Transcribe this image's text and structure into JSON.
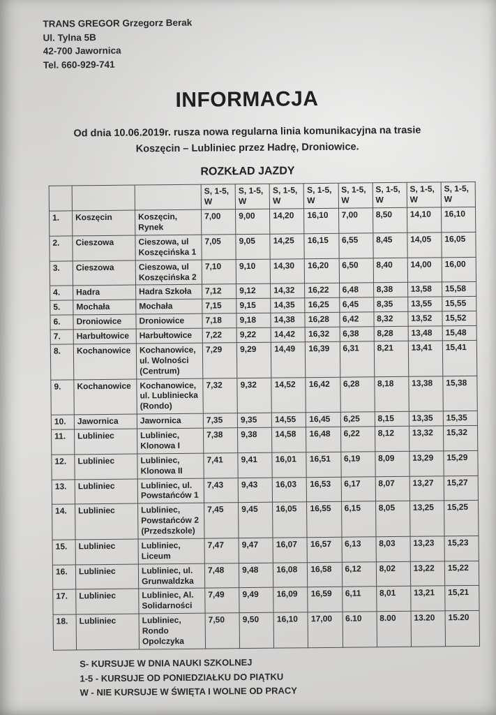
{
  "letterhead": {
    "company": "TRANS GREGOR Grzegorz Berak",
    "street": "Ul. Tylna 5B",
    "city": "42-700 Jawornica",
    "phone": "Tel. 660-929-741"
  },
  "title": "INFORMACJA",
  "intro": {
    "line1": "Od dnia 10.06.2019r. rusza nowa regularna linia komunikacyjna na trasie",
    "line2": "Koszęcin – Lubliniec przez Hadrę, Droniowice."
  },
  "table_title": "ROZKŁAD JAZDY",
  "timetable": {
    "time_headers": [
      "S, 1-5, W",
      "S, 1-5, W",
      "S, 1-5, W",
      "S, 1-5, W",
      "S, 1-5, W",
      "S, 1-5, W",
      "S, 1-5, W",
      "S, 1-5, W"
    ],
    "rows": [
      {
        "no": "1.",
        "village": "Koszęcin",
        "stop": "Koszęcin, Rynek",
        "times": [
          "7,00",
          "9,00",
          "14,20",
          "16,10",
          "7,00",
          "8,50",
          "14,10",
          "16,10"
        ]
      },
      {
        "no": "2.",
        "village": "Cieszowa",
        "stop": "Cieszowa, ul Koszęcińska 1",
        "times": [
          "7,05",
          "9,05",
          "14,25",
          "16,15",
          "6,55",
          "8,45",
          "14,05",
          "16,05"
        ]
      },
      {
        "no": "3.",
        "village": "Cieszowa",
        "stop": "Cieszowa, ul Koszęcińska 2",
        "times": [
          "7,10",
          "9,10",
          "14,30",
          "16,20",
          "6,50",
          "8,40",
          "14,00",
          "16,00"
        ]
      },
      {
        "no": "4.",
        "village": "Hadra",
        "stop": "Hadra Szkoła",
        "times": [
          "7,12",
          "9,12",
          "14,32",
          "16,22",
          "6,48",
          "8,38",
          "13,58",
          "15,58"
        ]
      },
      {
        "no": "5.",
        "village": "Mochała",
        "stop": "Mochała",
        "times": [
          "7,15",
          "9,15",
          "14,35",
          "16,25",
          "6,45",
          "8,35",
          "13,55",
          "15,55"
        ]
      },
      {
        "no": "6.",
        "village": "Droniowice",
        "stop": "Droniowice",
        "times": [
          "7,18",
          "9,18",
          "14,38",
          "16,28",
          "6,42",
          "8,32",
          "13,52",
          "15,52"
        ]
      },
      {
        "no": "7.",
        "village": "Harbułtowice",
        "stop": "Harbułtowice",
        "times": [
          "7,22",
          "9,22",
          "14,42",
          "16,32",
          "6,38",
          "8,28",
          "13,48",
          "15,48"
        ]
      },
      {
        "no": "8.",
        "village": "Kochanowice",
        "stop": "Kochanowice, ul. Wolności (Centrum)",
        "times": [
          "7,29",
          "9,29",
          "14,49",
          "16,39",
          "6,31",
          "8,21",
          "13,41",
          "15,41"
        ]
      },
      {
        "no": "9.",
        "village": "Kochanowice",
        "stop": "Kochanowice, ul. Lubliniecka (Rondo)",
        "times": [
          "7,32",
          "9,32",
          "14,52",
          "16,42",
          "6,28",
          "8,18",
          "13,38",
          "15,38"
        ]
      },
      {
        "no": "10.",
        "village": "Jawornica",
        "stop": "Jawornica",
        "times": [
          "7,35",
          "9,35",
          "14,55",
          "16,45",
          "6,25",
          "8,15",
          "13,35",
          "15,35"
        ]
      },
      {
        "no": "11.",
        "village": "Lubliniec",
        "stop": "Lubliniec, Klonowa I",
        "times": [
          "7,38",
          "9,38",
          "14,58",
          "16,48",
          "6,22",
          "8,12",
          "13,32",
          "15,32"
        ]
      },
      {
        "no": "12.",
        "village": "Lubliniec",
        "stop": "Lubliniec, Klonowa II",
        "times": [
          "7,41",
          "9,41",
          "16,01",
          "16,51",
          "6,19",
          "8,09",
          "13,29",
          "15,29"
        ]
      },
      {
        "no": "13.",
        "village": "Lubliniec",
        "stop": "Lubliniec, ul. Powstańców 1",
        "times": [
          "7,43",
          "9,43",
          "16,03",
          "16,53",
          "6,17",
          "8,07",
          "13,27",
          "15,27"
        ]
      },
      {
        "no": "14.",
        "village": "Lubliniec",
        "stop": "Lubliniec, Powstańców 2 (Przedszkole)",
        "times": [
          "7,45",
          "9,45",
          "16,05",
          "16,55",
          "6,15",
          "8,05",
          "13,25",
          "15,25"
        ]
      },
      {
        "no": "15.",
        "village": "Lubliniec",
        "stop": "Lubliniec, Liceum",
        "times": [
          "7,47",
          "9,47",
          "16,07",
          "16,57",
          "6,13",
          "8,03",
          "13,23",
          "15,23"
        ]
      },
      {
        "no": "16.",
        "village": "Lubliniec",
        "stop": "Lubliniec, ul. Grunwaldzka",
        "times": [
          "7,48",
          "9,48",
          "16,08",
          "16,58",
          "6,12",
          "8,02",
          "13,22",
          "15,22"
        ]
      },
      {
        "no": "17.",
        "village": "Lubliniec",
        "stop": "Lubliniec, Al. Solidarności",
        "times": [
          "7,49",
          "9,49",
          "16,09",
          "16,59",
          "6,11",
          "8,01",
          "13,21",
          "15,21"
        ]
      },
      {
        "no": "18.",
        "village": "Lubliniec",
        "stop": "Lubliniec, Rondo Opolczyka",
        "times": [
          "7,50",
          "9,50",
          "16,10",
          "17,00",
          "6.10",
          "8.00",
          "13.20",
          "15.20"
        ]
      }
    ]
  },
  "legend": [
    "S- KURSUJE W DNIA NAUKI SZKOLNEJ",
    "1-5 - KURSUJE OD PONIEDZIAŁKU DO PIĄTKU",
    "W - NIE KURSUJE W ŚWIĘTA I WOLNE OD PRACY"
  ]
}
